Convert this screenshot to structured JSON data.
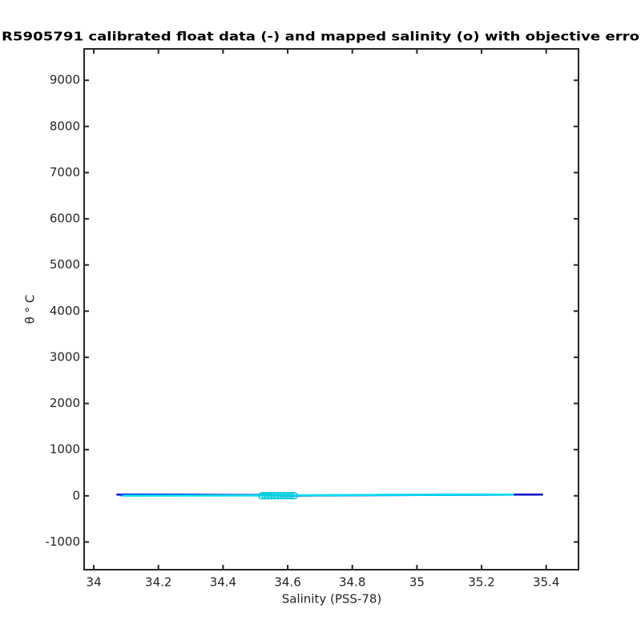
{
  "chart_data": {
    "type": "line",
    "title": "R5905791 calibrated float data (-) and mapped salinity (o) with objective erro",
    "x_label": "Salinity (PSS-78)",
    "y_label": "θ ° C",
    "xlim": [
      33.97,
      35.5
    ],
    "ylim": [
      -1600,
      9680
    ],
    "xticks": [
      34,
      34.2,
      34.4,
      34.6,
      34.8,
      35,
      35.2,
      35.4
    ],
    "yticks": [
      -1000,
      0,
      1000,
      2000,
      3000,
      4000,
      5000,
      6000,
      7000,
      8000,
      9000
    ],
    "series": [
      {
        "style": "line",
        "color": "#0000c8",
        "x": [
          34.07,
          34.3,
          34.52,
          34.6,
          34.9,
          35.2,
          35.39
        ],
        "values": [
          28,
          25,
          15,
          5,
          20,
          25,
          28
        ]
      },
      {
        "style": "line",
        "color": "#1e5aff",
        "x": [
          34.08,
          34.4,
          34.55,
          34.62,
          35.0,
          35.3
        ],
        "values": [
          12,
          14,
          8,
          4,
          18,
          24
        ]
      },
      {
        "style": "line",
        "color": "#00e0f0",
        "x": [
          34.09,
          34.3,
          34.5,
          34.6,
          34.9,
          35.3
        ],
        "values": [
          2,
          5,
          8,
          10,
          20,
          28
        ]
      },
      {
        "style": "marker",
        "color": "#00c8d8",
        "x": [
          34.52,
          34.53,
          34.54,
          34.55,
          34.56,
          34.57,
          34.58,
          34.59,
          34.6,
          34.61,
          34.62
        ],
        "values": [
          2,
          3,
          2,
          4,
          3,
          2,
          3,
          4,
          2,
          3,
          2
        ]
      }
    ]
  }
}
